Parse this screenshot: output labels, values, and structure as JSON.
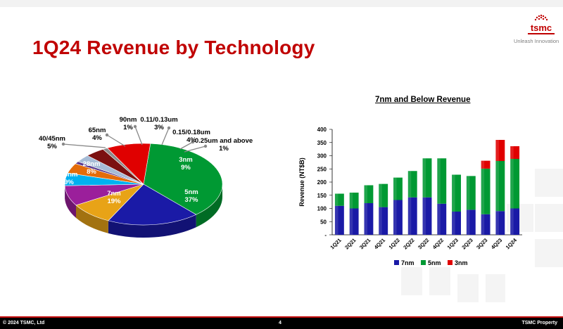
{
  "slide": {
    "title": "1Q24 Revenue by Technology",
    "logo_text": "tsmc",
    "tagline": "Unleash Innovation",
    "footer_left": "© 2024 TSMC, Ltd",
    "page_number": "4",
    "footer_right": "TSMC Property",
    "accent_color": "#c00000"
  },
  "chart_data": [
    {
      "type": "pie",
      "title": "",
      "slices": [
        {
          "label": "5nm",
          "value": 37,
          "display": "37%",
          "color": "#009933"
        },
        {
          "label": "7nm",
          "value": 19,
          "display": "19%",
          "color": "#1a1aa6"
        },
        {
          "label": "16nm",
          "value": 9,
          "display": "9%",
          "color": "#e8a317"
        },
        {
          "label": "28nm",
          "value": 8,
          "display": "8%",
          "color": "#9b1f9b"
        },
        {
          "label": "40/45nm",
          "value": 5,
          "display": "5%",
          "color": "#00b0f0"
        },
        {
          "label": "65nm",
          "value": 4,
          "display": "4%",
          "color": "#e46c0a"
        },
        {
          "label": "90nm",
          "value": 1,
          "display": "1%",
          "color": "#5b3a8e"
        },
        {
          "label": "0.11/0.13um",
          "value": 3,
          "display": "3%",
          "color": "#a6bcd6"
        },
        {
          "label": "0.15/0.18um",
          "value": 4,
          "display": "4%",
          "color": "#7b1010"
        },
        {
          "label": "0.25um and above",
          "value": 1,
          "display": "1%",
          "color": "#8c8c8c"
        },
        {
          "label": "3nm",
          "value": 9,
          "display": "9%",
          "color": "#e00000"
        }
      ]
    },
    {
      "type": "bar",
      "stacked": true,
      "title": "7nm and Below Revenue",
      "ylabel": "Revenue (NT$B)",
      "xlabel": "",
      "ylim": [
        0,
        400
      ],
      "yticks": [
        "-",
        "50",
        "100",
        "150",
        "200",
        "250",
        "300",
        "350",
        "400"
      ],
      "categories": [
        "1Q21",
        "2Q21",
        "3Q21",
        "4Q21",
        "1Q22",
        "2Q22",
        "3Q22",
        "4Q22",
        "1Q23",
        "2Q23",
        "3Q23",
        "4Q23",
        "1Q24"
      ],
      "series": [
        {
          "name": "7nm",
          "color": "#1a1aa6",
          "values": [
            110,
            100,
            120,
            105,
            132,
            142,
            142,
            118,
            88,
            95,
            78,
            90,
            100
          ]
        },
        {
          "name": "5nm",
          "color": "#009933",
          "values": [
            46,
            60,
            68,
            88,
            85,
            100,
            148,
            172,
            140,
            128,
            173,
            190,
            188
          ]
        },
        {
          "name": "3nm",
          "color": "#e00000",
          "values": [
            0,
            0,
            0,
            0,
            0,
            0,
            0,
            0,
            0,
            0,
            30,
            80,
            48
          ]
        }
      ],
      "legend_position": "bottom"
    }
  ]
}
